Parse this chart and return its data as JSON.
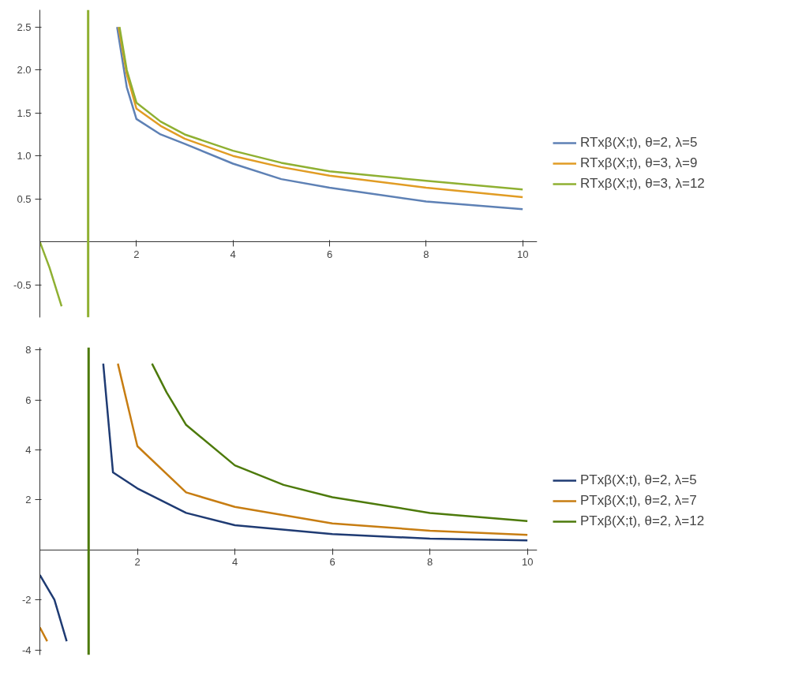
{
  "chart_data": [
    {
      "type": "line",
      "xlim": [
        0,
        10.3
      ],
      "ylim": [
        -0.88,
        2.7
      ],
      "xticks": [
        2,
        4,
        6,
        8,
        10
      ],
      "yticks": [
        -0.5,
        0.5,
        {
          "value": 1,
          "label": "1.0"
        },
        1.5,
        {
          "value": 2,
          "label": "2.0"
        },
        2.5
      ],
      "grid": false,
      "legend": "right",
      "ref_lines": [
        {
          "axis": "x",
          "value": 1,
          "color": "#8fb032"
        }
      ],
      "series": [
        {
          "name": "RTxβ(X;t), θ=2, λ=5",
          "color": "#5e81b5",
          "x": [
            1.6,
            1.8,
            2,
            2.5,
            3,
            4,
            5,
            6,
            8,
            10
          ],
          "values": [
            2.5,
            1.8,
            1.43,
            1.25,
            1.14,
            0.91,
            0.73,
            0.63,
            0.47,
            0.38
          ]
        },
        {
          "name": "RTxβ(X;t), θ=3, λ=9",
          "color": "#e19c24",
          "x": [
            1.63,
            1.8,
            2,
            2.5,
            3,
            4,
            5,
            6,
            8,
            10
          ],
          "values": [
            2.5,
            1.95,
            1.55,
            1.35,
            1.2,
            1.0,
            0.87,
            0.77,
            0.63,
            0.52
          ]
        },
        {
          "name": "RTxβ(X;t), θ=3, λ=12",
          "color": "#8fb032",
          "x": [
            0,
            0.2,
            0.45,
            1,
            1.65,
            1.8,
            2,
            2.5,
            3,
            4,
            5,
            6,
            8,
            10
          ],
          "values": [
            0,
            -0.3,
            -0.75,
            null,
            2.5,
            2.0,
            1.62,
            1.4,
            1.25,
            1.06,
            0.92,
            0.82,
            0.71,
            0.61
          ]
        }
      ]
    },
    {
      "type": "line",
      "xlim": [
        0,
        10.2
      ],
      "ylim": [
        -4.2,
        8.1
      ],
      "xticks": [
        2,
        4,
        6,
        8,
        10
      ],
      "yticks": [
        -4,
        -2,
        2,
        4,
        6,
        8
      ],
      "grid": false,
      "legend": "right",
      "ref_lines": [
        {
          "axis": "x",
          "value": 1,
          "color": "#4d7a0b"
        }
      ],
      "series": [
        {
          "name": "PTxβ(X;t), θ=2, λ=5",
          "color": "#1f3b73",
          "x": [
            0,
            0.3,
            0.55,
            1,
            1.3,
            1.5,
            2,
            3,
            4,
            6,
            8,
            10
          ],
          "values": [
            -1,
            -2,
            -3.65,
            null,
            7.45,
            3.1,
            2.46,
            1.48,
            0.99,
            0.63,
            0.45,
            0.38
          ]
        },
        {
          "name": "PTxβ(X;t), θ=2, λ=7",
          "color": "#c77d12",
          "x": [
            0,
            0.15,
            1,
            1.6,
            2,
            3,
            4,
            6,
            8,
            10
          ],
          "values": [
            -3.1,
            -3.65,
            null,
            7.45,
            4.15,
            2.3,
            1.72,
            1.06,
            0.77,
            0.6
          ]
        },
        {
          "name": "PTxβ(X;t), θ=2, λ=12",
          "color": "#4d7a0b",
          "x": [
            2.3,
            2.6,
            3,
            4,
            5,
            6,
            8,
            10
          ],
          "values": [
            7.45,
            6.3,
            5.0,
            3.38,
            2.6,
            2.11,
            1.48,
            1.15
          ]
        }
      ]
    }
  ]
}
